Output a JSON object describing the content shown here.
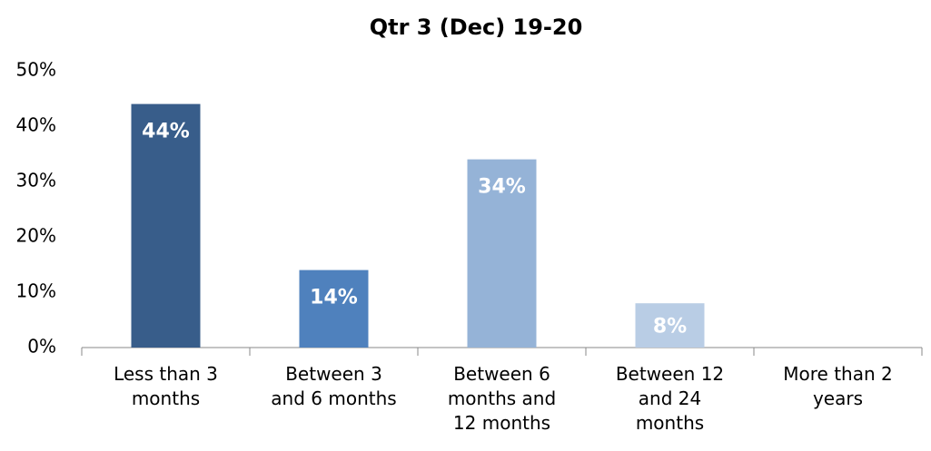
{
  "chart_data": {
    "type": "bar",
    "title": "Qtr 3 (Dec) 19-20",
    "categories": [
      "Less than 3 months",
      "Between 3 and 6 months",
      "Between 6 months and 12 months",
      "Between 12 and 24 months",
      "More than 2 years"
    ],
    "values": [
      44,
      14,
      34,
      8,
      null
    ],
    "value_labels": [
      "44%",
      "14%",
      "34%",
      "8%",
      null
    ],
    "colors": [
      "#385d8a",
      "#4f81bd",
      "#95b3d7",
      "#b9cde5",
      "#dce6f2"
    ],
    "ylim": [
      0,
      50
    ],
    "yticks": [
      {
        "value": 0,
        "label": "0%"
      },
      {
        "value": 10,
        "label": "10%"
      },
      {
        "value": 20,
        "label": "20%"
      },
      {
        "value": 30,
        "label": "30%"
      },
      {
        "value": 40,
        "label": "40%"
      },
      {
        "value": 50,
        "label": "50%"
      }
    ],
    "grid": false
  }
}
